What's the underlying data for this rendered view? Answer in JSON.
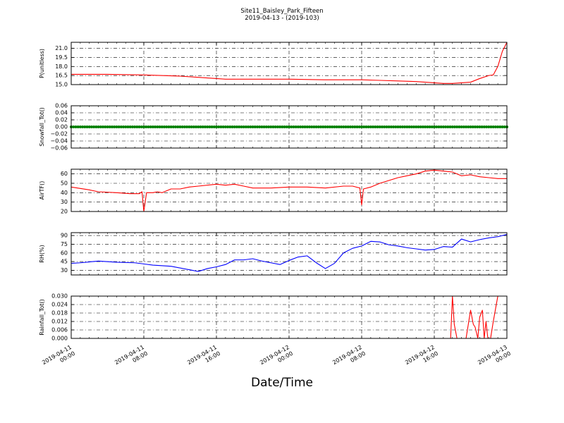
{
  "figure": {
    "title": "Site11_Baisley_Park_Fifteen",
    "subtitle": "2019-04-13 - (2019-103)",
    "xlabel": "Date/Time"
  },
  "x_ticks": [
    {
      "line1": "2019-04-11",
      "line2": "00:00",
      "t": 0
    },
    {
      "line1": "2019-04-11",
      "line2": "08:00",
      "t": 8
    },
    {
      "line1": "2019-04-11",
      "line2": "16:00",
      "t": 16
    },
    {
      "line1": "2019-04-12",
      "line2": "00:00",
      "t": 24
    },
    {
      "line1": "2019-04-12",
      "line2": "08:00",
      "t": 32
    },
    {
      "line1": "2019-04-12",
      "line2": "16:00",
      "t": 40
    },
    {
      "line1": "2019-04-13",
      "line2": "00:00",
      "t": 48
    }
  ],
  "chart_data": [
    {
      "type": "line",
      "ylabel": "P(unitless)",
      "ylim": [
        15.0,
        22.0
      ],
      "yticks": [
        "15.0",
        "16.5",
        "18.0",
        "19.5",
        "21.0"
      ],
      "ytick_values": [
        15.0,
        16.5,
        18.0,
        19.5,
        21.0
      ],
      "grid": true,
      "series": [
        {
          "color": "#ff0000",
          "marker": "none",
          "x": [
            0,
            4,
            8,
            12,
            14,
            16,
            17,
            18,
            20,
            24,
            28,
            32,
            34,
            36,
            38,
            40,
            41,
            42,
            43,
            44,
            45,
            46,
            46.5,
            47,
            47.5,
            48
          ],
          "y": [
            16.7,
            16.7,
            16.6,
            16.4,
            16.2,
            16.0,
            15.9,
            15.9,
            15.9,
            15.9,
            15.8,
            15.8,
            15.7,
            15.6,
            15.5,
            15.3,
            15.2,
            15.2,
            15.3,
            15.4,
            16.0,
            16.5,
            16.6,
            18.0,
            20.5,
            22.0
          ]
        }
      ]
    },
    {
      "type": "line",
      "ylabel": "Snowfall_Tot()",
      "ylim": [
        -0.06,
        0.06
      ],
      "yticks": [
        "−0.06",
        "−0.04",
        "−0.02",
        "0.00",
        "0.02",
        "0.04",
        "0.06"
      ],
      "ytick_values": [
        -0.06,
        -0.04,
        -0.02,
        0.0,
        0.02,
        0.04,
        0.06
      ],
      "grid": true,
      "series": [
        {
          "color": "#008000",
          "marker": "o",
          "constant": 0.0,
          "x_range": [
            0,
            48
          ],
          "interval_hours": 0.25
        }
      ]
    },
    {
      "type": "line",
      "ylabel": "AirTF()",
      "ylim": [
        20,
        65
      ],
      "yticks": [
        "20",
        "30",
        "40",
        "50",
        "60"
      ],
      "ytick_values": [
        20,
        30,
        40,
        50,
        60
      ],
      "grid": true,
      "series": [
        {
          "color": "#ff0000",
          "marker": "none",
          "x": [
            0,
            2,
            3,
            5,
            6.5,
            7.5,
            7.8,
            8.0,
            8.3,
            9,
            9.5,
            10,
            11,
            12,
            13,
            14,
            16,
            17,
            18,
            19,
            20,
            22,
            24,
            26,
            28,
            30,
            31,
            31.8,
            32,
            32.2,
            33,
            34,
            35,
            36,
            37,
            38,
            39,
            40,
            41,
            42,
            43,
            44,
            45,
            46,
            47,
            48
          ],
          "y": [
            46,
            43,
            41,
            40,
            39,
            39,
            41,
            20,
            40,
            40,
            41,
            40,
            44,
            44,
            46,
            47,
            49,
            48,
            49,
            47,
            45,
            45,
            46,
            46,
            45,
            47,
            47,
            45,
            27,
            44,
            46,
            50,
            53,
            56,
            58,
            60,
            63,
            64,
            63,
            62,
            58,
            59,
            57,
            56,
            55,
            55
          ]
        }
      ]
    },
    {
      "type": "line",
      "ylabel": "RH(%)",
      "ylim": [
        22,
        95
      ],
      "yticks": [
        "30",
        "45",
        "60",
        "75",
        "90"
      ],
      "ytick_values": [
        30,
        45,
        60,
        75,
        90
      ],
      "grid": true,
      "series": [
        {
          "color": "#0000ff",
          "marker": "none",
          "x": [
            0,
            1,
            3,
            5,
            7,
            8,
            9,
            11,
            13,
            14,
            15,
            16,
            17,
            18,
            19,
            20,
            21,
            22,
            23,
            24,
            25,
            26,
            27,
            28,
            29,
            30,
            31,
            32,
            33,
            34,
            35,
            36,
            37,
            38,
            39,
            40,
            41,
            42,
            43,
            44,
            45,
            46,
            47,
            48
          ],
          "y": [
            42,
            43,
            46,
            44,
            43,
            41,
            39,
            37,
            31,
            28,
            33,
            36,
            40,
            48,
            48,
            50,
            46,
            43,
            40,
            47,
            53,
            55,
            43,
            33,
            42,
            60,
            68,
            72,
            80,
            79,
            74,
            72,
            69,
            67,
            65,
            66,
            71,
            70,
            84,
            79,
            83,
            86,
            88,
            92
          ]
        }
      ]
    },
    {
      "type": "line",
      "ylabel": "Rainfall_Tot()",
      "ylim": [
        0.0,
        0.03
      ],
      "yticks": [
        "0.000",
        "0.006",
        "0.012",
        "0.018",
        "0.024",
        "0.030"
      ],
      "ytick_values": [
        0.0,
        0.006,
        0.012,
        0.018,
        0.024,
        0.03
      ],
      "grid": true,
      "series": [
        {
          "color": "#ff0000",
          "marker": "none",
          "x": [
            0,
            41.8,
            42.0,
            42.2,
            42.5,
            43.0,
            43.5,
            43.8,
            44.0,
            44.3,
            44.5,
            44.8,
            45.0,
            45.3,
            45.5,
            45.7,
            45.9,
            46.2,
            46.5,
            47.0,
            47.5,
            48
          ],
          "y": [
            0.0,
            0.0,
            0.03,
            0.01,
            0.0,
            0.0,
            0.0,
            0.012,
            0.02,
            0.01,
            0.008,
            0.0,
            0.015,
            0.02,
            0.0,
            0.012,
            0.0,
            0.0,
            0.012,
            0.03,
            0.03,
            0.03
          ]
        }
      ]
    }
  ]
}
